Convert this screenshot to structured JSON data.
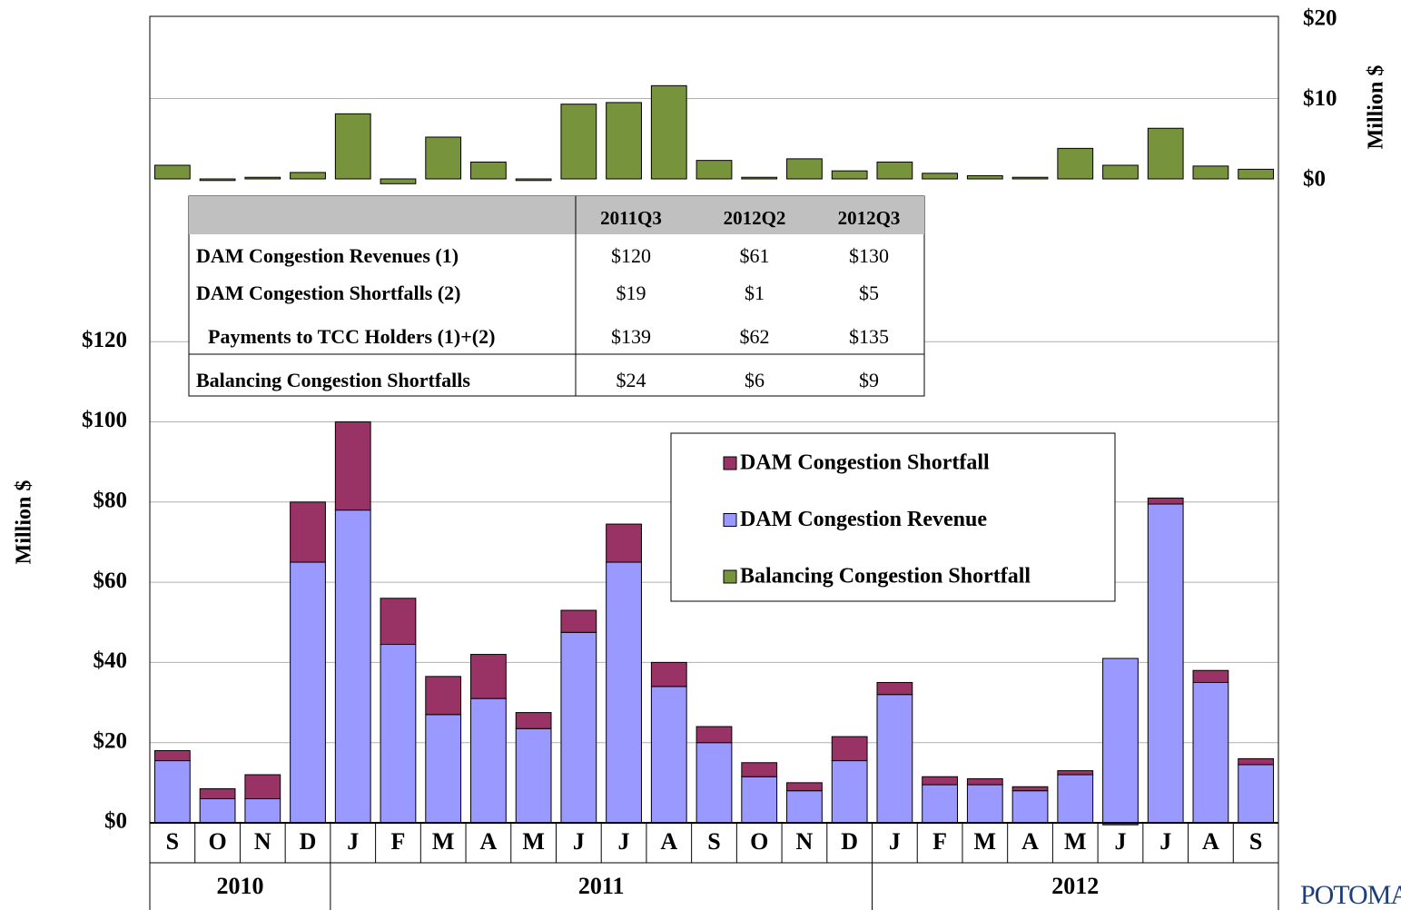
{
  "chart_data": {
    "type": "stacked-bar-with-panel",
    "categories": [
      "S",
      "O",
      "N",
      "D",
      "J",
      "F",
      "M",
      "A",
      "M",
      "J",
      "J",
      "A",
      "S",
      "O",
      "N",
      "D",
      "J",
      "F",
      "M",
      "A",
      "M",
      "J",
      "J",
      "A",
      "S"
    ],
    "years": [
      "2010",
      "2010",
      "2010",
      "2010",
      "2011",
      "2011",
      "2011",
      "2011",
      "2011",
      "2011",
      "2011",
      "2011",
      "2011",
      "2011",
      "2011",
      "2011",
      "2012",
      "2012",
      "2012",
      "2012",
      "2012",
      "2012",
      "2012",
      "2012",
      "2012"
    ],
    "series": [
      {
        "name": "DAM Congestion Revenue",
        "color": "#9999ff",
        "values": [
          15.5,
          6,
          6,
          65,
          78,
          44.5,
          27,
          31,
          23.5,
          47.5,
          65,
          34,
          20,
          11.5,
          8,
          15.5,
          32,
          9.5,
          9.5,
          8,
          12,
          41,
          79.5,
          35,
          14.5
        ]
      },
      {
        "name": "DAM Congestion Shortfall",
        "color": "#993366",
        "values": [
          2.5,
          2.5,
          6,
          15,
          22,
          11.5,
          9.5,
          11,
          4,
          5.5,
          9.5,
          6,
          4,
          3.5,
          2,
          6,
          3,
          2,
          1.5,
          1,
          1,
          -0.5,
          1.5,
          3,
          1.5
        ]
      },
      {
        "name": "Balancing Congestion Shortfall",
        "color": "#77933c",
        "axis": "y2",
        "values": [
          1.7,
          -0.2,
          0.2,
          0.8,
          8.1,
          -0.6,
          5.2,
          2.1,
          -0.2,
          9.3,
          9.5,
          11.6,
          2.3,
          0.2,
          2.5,
          1.0,
          2.1,
          0.7,
          0.4,
          0.2,
          3.8,
          1.7,
          6.3,
          1.6,
          1.2
        ]
      }
    ],
    "legend_order": [
      1,
      0,
      2
    ],
    "ylabel": "Million $",
    "y2label": "Million $",
    "ylim": [
      0,
      200
    ],
    "yticks": [
      {
        "value": 0,
        "label": "$0"
      },
      {
        "value": 20,
        "label": "$20"
      },
      {
        "value": 40,
        "label": "$40"
      },
      {
        "value": 60,
        "label": "$60"
      },
      {
        "value": 80,
        "label": "$80"
      },
      {
        "value": 100,
        "label": "$100"
      },
      {
        "value": 120,
        "label": "$120"
      }
    ],
    "y2lim": [
      0,
      20
    ],
    "y2ticks": [
      {
        "value": 0,
        "label": "$0"
      },
      {
        "value": 10,
        "label": "$10"
      },
      {
        "value": 20,
        "label": "$20"
      }
    ],
    "grid": true
  },
  "table": {
    "columns": [
      "2011Q3",
      "2012Q2",
      "2012Q3"
    ],
    "rows": [
      {
        "label": "DAM Congestion Revenues (1)",
        "values": [
          "$120",
          "$61",
          "$130"
        ]
      },
      {
        "label": "DAM Congestion Shortfalls (2)",
        "values": [
          "$19",
          "$1",
          "$5"
        ]
      },
      {
        "label": "Payments to TCC Holders (1)+(2)",
        "values": [
          "$139",
          "$62",
          "$135"
        ]
      },
      {
        "label": "Balancing Congestion Shortfalls",
        "values": [
          "$24",
          "$6",
          "$9"
        ]
      }
    ]
  },
  "logo_text": "POTOMAC"
}
